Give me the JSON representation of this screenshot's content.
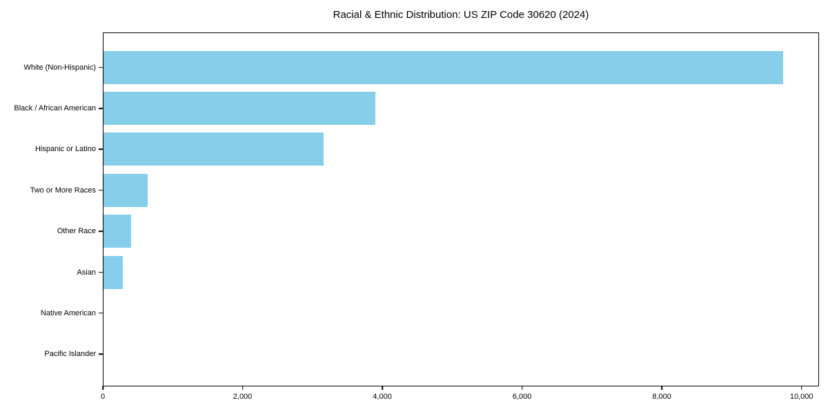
{
  "chart_data": {
    "type": "bar",
    "orientation": "horizontal",
    "title": "Racial & Ethnic Distribution: US ZIP Code 30620 (2024)",
    "categories": [
      "White (Non-Hispanic)",
      "Black / African American",
      "Hispanic or Latino",
      "Two or More Races",
      "Other Race",
      "Asian",
      "Native American",
      "Pacific Islander"
    ],
    "values": [
      9745,
      3900,
      3160,
      635,
      400,
      275,
      0,
      0
    ],
    "xlabel": "",
    "ylabel": "",
    "xlim": [
      0,
      10250
    ],
    "xticks": [
      0,
      2000,
      4000,
      6000,
      8000,
      10000
    ],
    "xtick_labels": [
      "0",
      "2,000",
      "4,000",
      "6,000",
      "8,000",
      "10,000"
    ],
    "bar_color": "#87CEEB",
    "grid": false,
    "legend": null
  }
}
